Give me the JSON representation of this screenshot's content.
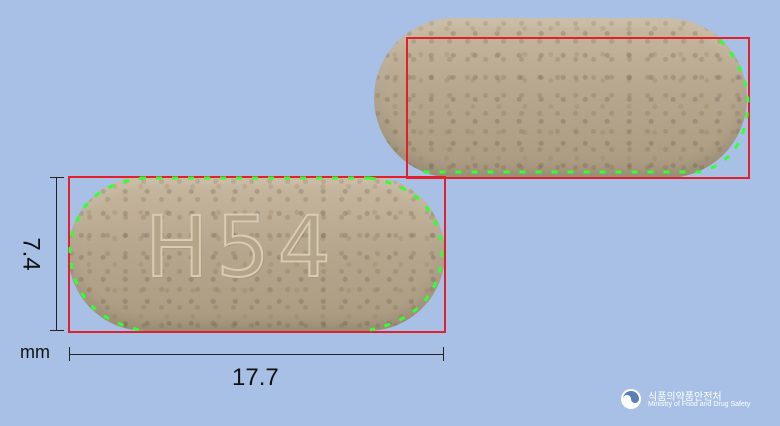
{
  "imprint": "H54",
  "dimensions": {
    "width": "17.7",
    "height": "7.4",
    "unit": "mm"
  },
  "watermark": {
    "name_korean": "식품의약품안전처",
    "name_english": "Ministry of Food and Drug Safety"
  },
  "colors": {
    "background": "#a8c0e6",
    "pill": "#b6a78e",
    "outline": "#e0202a",
    "edge_markers": "#33ff33"
  }
}
